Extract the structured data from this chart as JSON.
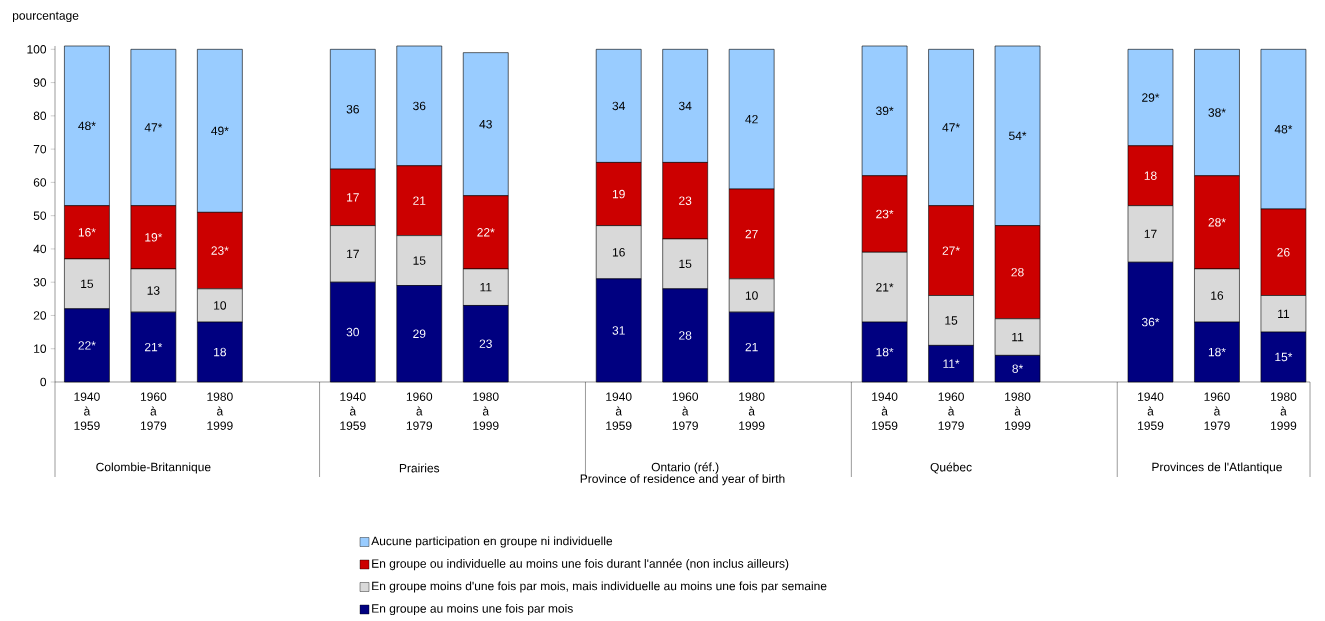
{
  "chart_data": {
    "type": "bar",
    "stacked": true,
    "ylabel": "pourcentage",
    "xlabel": "Province of residence and year of birth",
    "categories": [
      "1940 à 1959",
      "1960 à 1979",
      "1980 à 1999",
      null,
      "1940 à 1959",
      "1960 à 1979",
      "1980 à 1999",
      null,
      "1940 à 1959",
      "1960 à 1979",
      "1980 à 1999",
      null,
      "1940 à 1959",
      "1960 à 1979",
      "1980 à 1999",
      null,
      "1940 à 1959",
      "1960 à 1979",
      "1980 à 1999"
    ],
    "annotations": [
      "Colombie-Britannique",
      "Prairies",
      "Ontario (réf.)",
      "Québec",
      "Provinces de l'Atlantique"
    ],
    "series": [
      {
        "name": "En groupe au moins une fois par mois",
        "color": "#000080",
        "values": [
          22,
          21,
          18,
          null,
          30,
          29,
          23,
          null,
          31,
          28,
          21,
          null,
          18,
          11,
          8,
          null,
          36,
          18,
          15
        ],
        "value_labels": [
          "22*",
          "21*",
          "18",
          null,
          "30",
          "29",
          "23",
          null,
          "31",
          "28",
          "21",
          null,
          "18*",
          "11*",
          "8*",
          null,
          "36*",
          "18*",
          "15*"
        ]
      },
      {
        "name": "En groupe moins d'une fois par mois, mais individuelle au moins une fois par semaine",
        "color": "#d9d9d9",
        "values": [
          15,
          13,
          10,
          null,
          17,
          15,
          11,
          null,
          16,
          15,
          10,
          null,
          21,
          15,
          11,
          null,
          17,
          16,
          11
        ],
        "value_labels": [
          "15",
          "13",
          "10",
          null,
          "17",
          "15",
          "11",
          null,
          "16",
          "15",
          "10",
          null,
          "21*",
          "15",
          "11",
          null,
          "17",
          "16",
          "11"
        ]
      },
      {
        "name": "En groupe ou individuelle au moins une fois durant l'année (non inclus ailleurs)",
        "color": "#cc0000",
        "values": [
          16,
          19,
          23,
          null,
          17,
          21,
          22,
          null,
          19,
          23,
          27,
          null,
          23,
          27,
          28,
          null,
          18,
          28,
          26
        ],
        "value_labels": [
          "16*",
          "19*",
          "23*",
          null,
          "17",
          "21",
          "22*",
          null,
          "19",
          "23",
          "27",
          null,
          "23*",
          "27*",
          "28",
          null,
          "18",
          "28*",
          "26"
        ]
      },
      {
        "name": "Aucune participation en groupe ni individuelle",
        "color": "#99ccff",
        "values": [
          48,
          47,
          49,
          null,
          36,
          36,
          43,
          null,
          34,
          34,
          42,
          null,
          39,
          47,
          54,
          null,
          29,
          38,
          48
        ],
        "value_labels": [
          "48*",
          "47*",
          "49*",
          null,
          "36",
          "36",
          "43",
          null,
          "34",
          "34",
          "42",
          null,
          "39*",
          "47*",
          "54*",
          null,
          "29*",
          "38*",
          "48*"
        ]
      }
    ],
    "ylim": [
      0,
      101
    ],
    "yticks": [
      0,
      10,
      20,
      30,
      40,
      50,
      60,
      70,
      80,
      90,
      100
    ],
    "grid": false,
    "legend": "bottom"
  }
}
